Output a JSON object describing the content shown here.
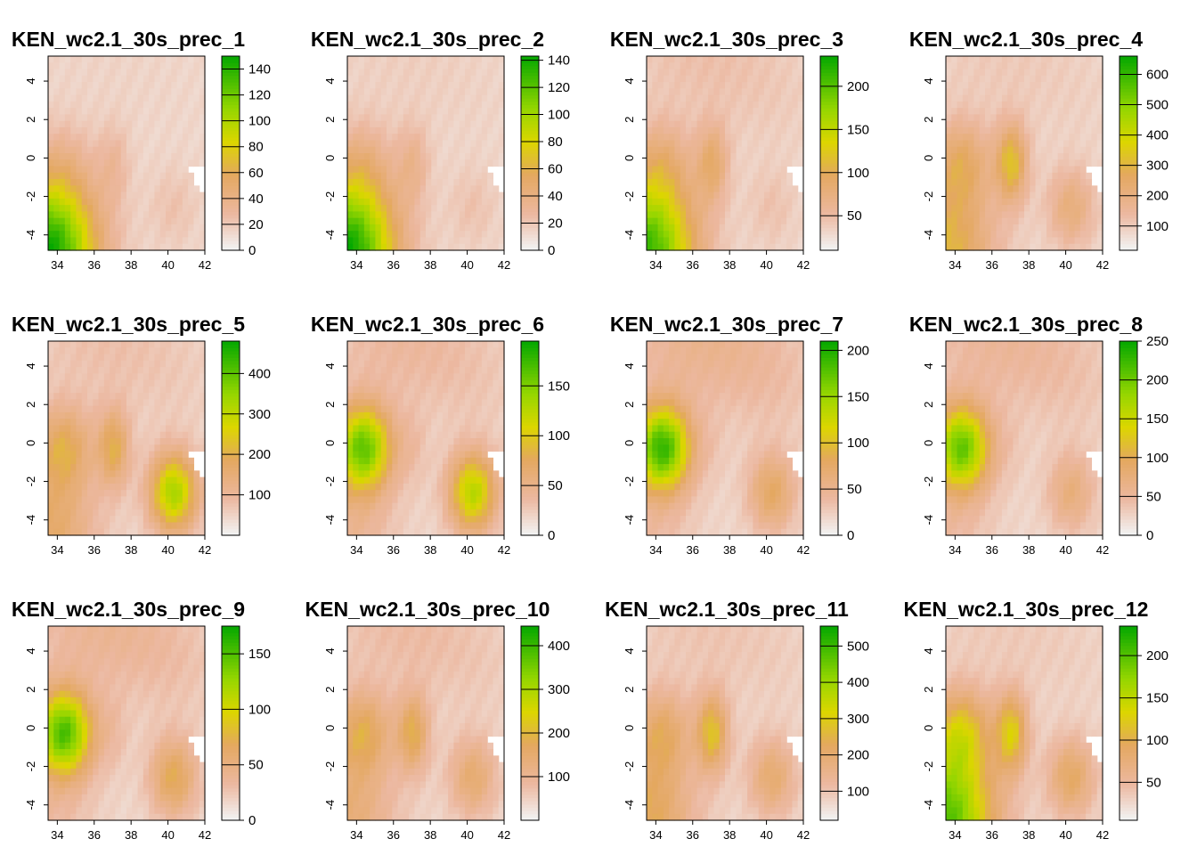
{
  "chart_data": [
    {
      "type": "heatmap",
      "title": "KEN_wc2.1_30s_prec_1",
      "x_ticks": [
        "34",
        "36",
        "38",
        "40",
        "42"
      ],
      "y_ticks": [
        "4",
        "2",
        "0",
        "-2",
        "-4"
      ],
      "legend": {
        "ticks": [
          "0",
          "20",
          "40",
          "60",
          "80",
          "100",
          "120",
          "140"
        ],
        "ticks_v": [
          0,
          20,
          40,
          60,
          80,
          100,
          120,
          140
        ],
        "range": [
          0,
          150
        ]
      },
      "pattern": {
        "sw": 1.0,
        "w": 0.1,
        "n": 0.05,
        "c": 0.15,
        "se": 0.1
      }
    },
    {
      "type": "heatmap",
      "title": "KEN_wc2.1_30s_prec_2",
      "x_ticks": [
        "34",
        "36",
        "38",
        "40",
        "42"
      ],
      "y_ticks": [
        "4",
        "2",
        "0",
        "-2",
        "-4"
      ],
      "legend": {
        "ticks": [
          "0",
          "20",
          "40",
          "60",
          "80",
          "100",
          "120",
          "140"
        ],
        "ticks_v": [
          0,
          20,
          40,
          60,
          80,
          100,
          120,
          140
        ],
        "range": [
          0,
          143
        ]
      },
      "pattern": {
        "sw": 1.0,
        "w": 0.15,
        "n": 0.1,
        "c": 0.2,
        "se": 0.1
      }
    },
    {
      "type": "heatmap",
      "title": "KEN_wc2.1_30s_prec_3",
      "x_ticks": [
        "34",
        "36",
        "38",
        "40",
        "42"
      ],
      "y_ticks": [
        "4",
        "2",
        "0",
        "-2",
        "-4"
      ],
      "legend": {
        "ticks": [
          "50",
          "100",
          "150",
          "200"
        ],
        "ticks_v": [
          50,
          100,
          150,
          200
        ],
        "range": [
          10,
          235
        ]
      },
      "pattern": {
        "sw": 0.9,
        "w": 0.2,
        "n": 0.25,
        "c": 0.35,
        "se": 0.1
      }
    },
    {
      "type": "heatmap",
      "title": "KEN_wc2.1_30s_prec_4",
      "x_ticks": [
        "34",
        "36",
        "38",
        "40",
        "42"
      ],
      "y_ticks": [
        "4",
        "2",
        "0",
        "-2",
        "-4"
      ],
      "legend": {
        "ticks": [
          "100",
          "200",
          "300",
          "400",
          "500",
          "600"
        ],
        "ticks_v": [
          100,
          200,
          300,
          400,
          500,
          600
        ],
        "range": [
          20,
          660
        ]
      },
      "pattern": {
        "sw": 0.4,
        "w": 0.3,
        "n": 0.15,
        "c": 0.55,
        "se": 0.3
      }
    },
    {
      "type": "heatmap",
      "title": "KEN_wc2.1_30s_prec_5",
      "x_ticks": [
        "34",
        "36",
        "38",
        "40",
        "42"
      ],
      "y_ticks": [
        "4",
        "2",
        "0",
        "-2",
        "-4"
      ],
      "legend": {
        "ticks": [
          "100",
          "200",
          "300",
          "400"
        ],
        "ticks_v": [
          100,
          200,
          300,
          400
        ],
        "range": [
          0,
          480
        ]
      },
      "pattern": {
        "sw": 0.3,
        "w": 0.35,
        "n": 0.25,
        "c": 0.45,
        "se": 0.85
      }
    },
    {
      "type": "heatmap",
      "title": "KEN_wc2.1_30s_prec_6",
      "x_ticks": [
        "34",
        "36",
        "38",
        "40",
        "42"
      ],
      "y_ticks": [
        "4",
        "2",
        "0",
        "-2",
        "-4"
      ],
      "legend": {
        "ticks": [
          "0",
          "50",
          "100",
          "150"
        ],
        "ticks_v": [
          0,
          50,
          100,
          150
        ],
        "range": [
          0,
          195
        ]
      },
      "pattern": {
        "sw": 0.15,
        "w": 0.85,
        "n": 0.35,
        "c": 0.1,
        "se": 0.8
      }
    },
    {
      "type": "heatmap",
      "title": "KEN_wc2.1_30s_prec_7",
      "x_ticks": [
        "34",
        "36",
        "38",
        "40",
        "42"
      ],
      "y_ticks": [
        "4",
        "2",
        "0",
        "-2",
        "-4"
      ],
      "legend": {
        "ticks": [
          "0",
          "50",
          "100",
          "150",
          "200"
        ],
        "ticks_v": [
          0,
          50,
          100,
          150,
          200
        ],
        "range": [
          0,
          210
        ]
      },
      "pattern": {
        "sw": 0.1,
        "w": 0.95,
        "n": 0.5,
        "c": 0.05,
        "se": 0.4
      }
    },
    {
      "type": "heatmap",
      "title": "KEN_wc2.1_30s_prec_8",
      "x_ticks": [
        "34",
        "36",
        "38",
        "40",
        "42"
      ],
      "y_ticks": [
        "4",
        "2",
        "0",
        "-2",
        "-4"
      ],
      "legend": {
        "ticks": [
          "0",
          "50",
          "100",
          "150",
          "200",
          "250"
        ],
        "ticks_v": [
          0,
          50,
          100,
          150,
          200,
          250
        ],
        "range": [
          0,
          250
        ]
      },
      "pattern": {
        "sw": 0.1,
        "w": 0.85,
        "n": 0.4,
        "c": 0.05,
        "se": 0.3
      }
    },
    {
      "type": "heatmap",
      "title": "KEN_wc2.1_30s_prec_9",
      "x_ticks": [
        "34",
        "36",
        "38",
        "40",
        "42"
      ],
      "y_ticks": [
        "4",
        "2",
        "0",
        "-2",
        "-4"
      ],
      "legend": {
        "ticks": [
          "0",
          "50",
          "100",
          "150"
        ],
        "ticks_v": [
          0,
          50,
          100,
          150
        ],
        "range": [
          0,
          175
        ]
      },
      "pattern": {
        "sw": 0.1,
        "w": 0.9,
        "n": 0.45,
        "c": 0.1,
        "se": 0.45
      }
    },
    {
      "type": "heatmap",
      "title": "KEN_wc2.1_30s_prec_10",
      "x_ticks": [
        "34",
        "36",
        "38",
        "40",
        "42"
      ],
      "y_ticks": [
        "4",
        "2",
        "0",
        "-2",
        "-4"
      ],
      "legend": {
        "ticks": [
          "100",
          "200",
          "300",
          "400"
        ],
        "ticks_v": [
          100,
          200,
          300,
          400
        ],
        "range": [
          0,
          445
        ]
      },
      "pattern": {
        "sw": 0.25,
        "w": 0.35,
        "n": 0.3,
        "c": 0.45,
        "se": 0.35
      }
    },
    {
      "type": "heatmap",
      "title": "KEN_wc2.1_30s_prec_11",
      "x_ticks": [
        "34",
        "36",
        "38",
        "40",
        "42"
      ],
      "y_ticks": [
        "4",
        "2",
        "0",
        "-2",
        "-4"
      ],
      "legend": {
        "ticks": [
          "100",
          "200",
          "300",
          "400",
          "500"
        ],
        "ticks_v": [
          100,
          200,
          300,
          400,
          500
        ],
        "range": [
          20,
          555
        ]
      },
      "pattern": {
        "sw": 0.35,
        "w": 0.3,
        "n": 0.2,
        "c": 0.55,
        "se": 0.35
      }
    },
    {
      "type": "heatmap",
      "title": "KEN_wc2.1_30s_prec_12",
      "x_ticks": [
        "34",
        "36",
        "38",
        "40",
        "42"
      ],
      "y_ticks": [
        "4",
        "2",
        "0",
        "-2",
        "-4"
      ],
      "legend": {
        "ticks": [
          "50",
          "100",
          "150",
          "200"
        ],
        "ticks_v": [
          50,
          100,
          150,
          200
        ],
        "range": [
          5,
          235
        ]
      },
      "pattern": {
        "sw": 0.85,
        "w": 0.45,
        "n": 0.15,
        "c": 0.6,
        "se": 0.4
      }
    }
  ]
}
